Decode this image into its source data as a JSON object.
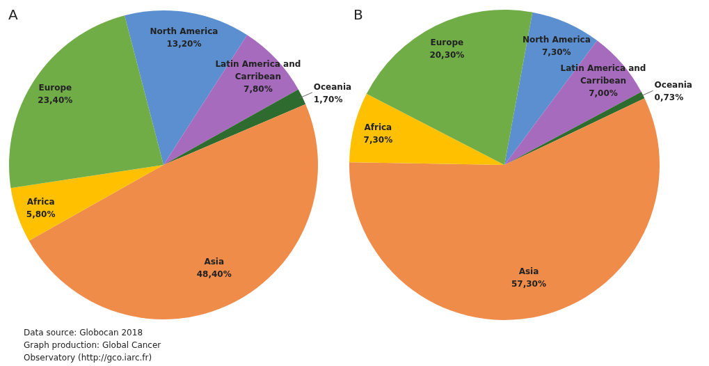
{
  "chart_data": [
    {
      "type": "pie",
      "title": "A",
      "categories": [
        "North America",
        "Latin America and Carribean",
        "Oceania",
        "Asia",
        "Africa",
        "Europe"
      ],
      "values": [
        13.2,
        7.8,
        1.7,
        48.4,
        5.8,
        23.4
      ],
      "colors": [
        "#5b8fd0",
        "#a66bbd",
        "#2e6b2e",
        "#ef8c4a",
        "#ffc000",
        "#70ad47"
      ],
      "value_labels": [
        "13,20%",
        "7,80%",
        "1,70%",
        "48,40%",
        "5,80%",
        "23,40%"
      ],
      "annotations": [
        "Data source: Globocan 2018",
        "Graph production: Global Cancer",
        "Observatory (http://gco.iarc.fr)"
      ]
    },
    {
      "type": "pie",
      "title": "B",
      "categories": [
        "North America",
        "Latin America and Carribean",
        "Oceania",
        "Asia",
        "Africa",
        "Europe"
      ],
      "values": [
        7.3,
        7.0,
        0.73,
        57.3,
        7.3,
        20.3
      ],
      "colors": [
        "#5b8fd0",
        "#a66bbd",
        "#2e6b2e",
        "#ef8c4a",
        "#ffc000",
        "#70ad47"
      ],
      "value_labels": [
        "7,30%",
        "7,00%",
        "0,73%",
        "57,30%",
        "7,30%",
        "20,30%"
      ]
    }
  ]
}
